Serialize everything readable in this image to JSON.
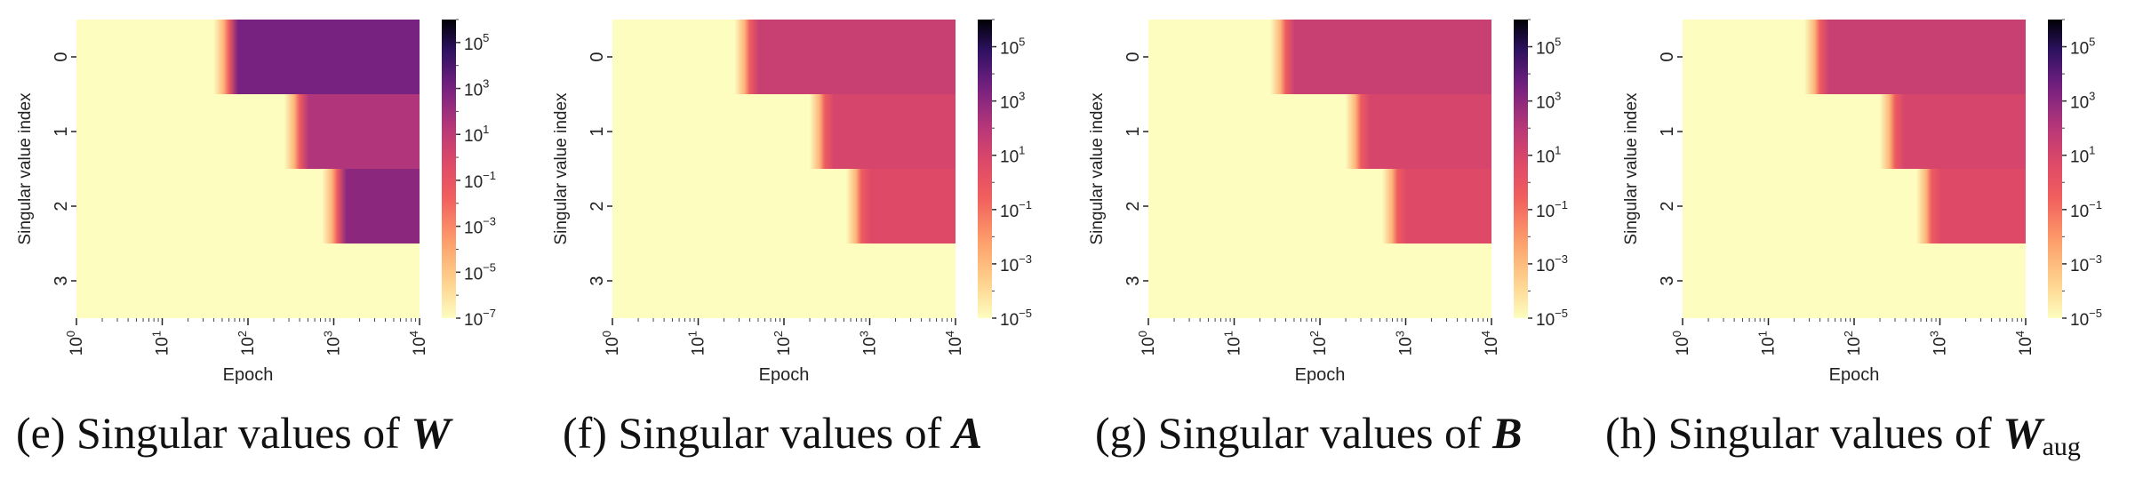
{
  "chart_data": [
    {
      "type": "heatmap",
      "caption_prefix": "(e) Singular values of ",
      "caption_symbol": "W",
      "caption_sub": "",
      "xlabel": "Epoch",
      "ylabel": "Singular value index",
      "x_scale": "log",
      "xlim": [
        1,
        10000
      ],
      "x_ticks": [
        "10",
        "10",
        "10",
        "10",
        "10"
      ],
      "x_tick_exps": [
        "0",
        "1",
        "2",
        "3",
        "4"
      ],
      "y_ticks": [
        "0",
        "1",
        "2",
        "3"
      ],
      "color_scale": "log",
      "colormap": "magma_r",
      "colorbar_range": [
        1e-07,
        1000000.0
      ],
      "colorbar_ticks": [
        "10",
        "10",
        "10",
        "10",
        "10",
        "10",
        "10"
      ],
      "colorbar_tick_exps": [
        "5",
        "3",
        "1",
        "-1",
        "-3",
        "-5",
        "-7"
      ],
      "rows": [
        {
          "index": 0,
          "transition_epoch": 60,
          "final_value": 1000
        },
        {
          "index": 1,
          "transition_epoch": 400,
          "final_value": 30
        },
        {
          "index": 2,
          "transition_epoch": 1100,
          "final_value": 300
        },
        {
          "index": 3,
          "transition_epoch": null,
          "final_value": 1e-07
        }
      ]
    },
    {
      "type": "heatmap",
      "caption_prefix": "(f) Singular values of ",
      "caption_symbol": "A",
      "caption_sub": "",
      "xlabel": "Epoch",
      "ylabel": "Singular value index",
      "x_scale": "log",
      "xlim": [
        1,
        10000
      ],
      "x_ticks": [
        "10",
        "10",
        "10",
        "10",
        "10"
      ],
      "x_tick_exps": [
        "0",
        "1",
        "2",
        "3",
        "4"
      ],
      "y_ticks": [
        "0",
        "1",
        "2",
        "3"
      ],
      "color_scale": "log",
      "colormap": "magma_r",
      "colorbar_range": [
        1e-05,
        1000000.0
      ],
      "colorbar_ticks": [
        "10",
        "10",
        "10",
        "10",
        "10",
        "10"
      ],
      "colorbar_tick_exps": [
        "5",
        "3",
        "1",
        "-1",
        "-3",
        "-5"
      ],
      "rows": [
        {
          "index": 0,
          "transition_epoch": 40,
          "final_value": 30
        },
        {
          "index": 1,
          "transition_epoch": 300,
          "final_value": 10
        },
        {
          "index": 2,
          "transition_epoch": 800,
          "final_value": 5
        },
        {
          "index": 3,
          "transition_epoch": null,
          "final_value": 1e-05
        }
      ]
    },
    {
      "type": "heatmap",
      "caption_prefix": "(g) Singular values of ",
      "caption_symbol": "B",
      "caption_sub": "",
      "xlabel": "Epoch",
      "ylabel": "Singular value index",
      "x_scale": "log",
      "xlim": [
        1,
        10000
      ],
      "x_ticks": [
        "10",
        "10",
        "10",
        "10",
        "10"
      ],
      "x_tick_exps": [
        "0",
        "1",
        "2",
        "3",
        "4"
      ],
      "y_ticks": [
        "0",
        "1",
        "2",
        "3"
      ],
      "color_scale": "log",
      "colormap": "magma_r",
      "colorbar_range": [
        1e-05,
        1000000.0
      ],
      "colorbar_ticks": [
        "10",
        "10",
        "10",
        "10",
        "10",
        "10"
      ],
      "colorbar_tick_exps": [
        "5",
        "3",
        "1",
        "-1",
        "-3",
        "-5"
      ],
      "rows": [
        {
          "index": 0,
          "transition_epoch": 40,
          "final_value": 30
        },
        {
          "index": 1,
          "transition_epoch": 300,
          "final_value": 10
        },
        {
          "index": 2,
          "transition_epoch": 800,
          "final_value": 5
        },
        {
          "index": 3,
          "transition_epoch": null,
          "final_value": 1e-05
        }
      ]
    },
    {
      "type": "heatmap",
      "caption_prefix": "(h) Singular values of ",
      "caption_symbol": "W",
      "caption_sub": "aug",
      "xlabel": "Epoch",
      "ylabel": "Singular value index",
      "x_scale": "log",
      "xlim": [
        1,
        10000
      ],
      "x_ticks": [
        "10",
        "10",
        "10",
        "10",
        "10"
      ],
      "x_tick_exps": [
        "0",
        "1",
        "2",
        "3",
        "4"
      ],
      "y_ticks": [
        "0",
        "1",
        "2",
        "3"
      ],
      "color_scale": "log",
      "colormap": "magma_r",
      "colorbar_range": [
        1e-05,
        1000000.0
      ],
      "colorbar_ticks": [
        "10",
        "10",
        "10",
        "10",
        "10",
        "10"
      ],
      "colorbar_tick_exps": [
        "5",
        "3",
        "1",
        "-1",
        "-3",
        "-5"
      ],
      "rows": [
        {
          "index": 0,
          "transition_epoch": 40,
          "final_value": 30
        },
        {
          "index": 1,
          "transition_epoch": 300,
          "final_value": 10
        },
        {
          "index": 2,
          "transition_epoch": 800,
          "final_value": 5
        },
        {
          "index": 3,
          "transition_epoch": null,
          "final_value": 1e-05
        }
      ]
    }
  ]
}
